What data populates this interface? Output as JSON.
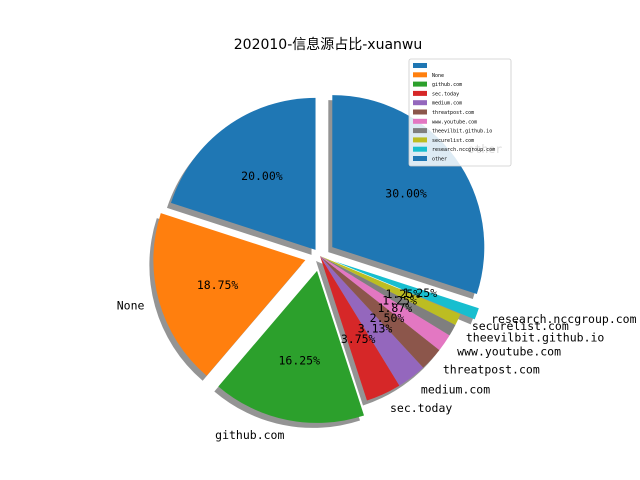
{
  "chart_data": {
    "type": "pie",
    "title": "202010-信息源占比-xuanwu",
    "slices": [
      {
        "label": "",
        "value": 20.0,
        "pct_label": "20.00%",
        "color": "#1f77b4"
      },
      {
        "label": "None",
        "value": 18.75,
        "pct_label": "18.75%",
        "color": "#ff7f0e"
      },
      {
        "label": "github.com",
        "value": 16.25,
        "pct_label": "16.25%",
        "color": "#2ca02c"
      },
      {
        "label": "sec.today",
        "value": 3.75,
        "pct_label": "3.75%",
        "color": "#d62728"
      },
      {
        "label": "medium.com",
        "value": 3.13,
        "pct_label": "3.13%",
        "color": "#9467bd"
      },
      {
        "label": "threatpost.com",
        "value": 2.5,
        "pct_label": "2.50%",
        "color": "#8c564b"
      },
      {
        "label": "www.youtube.com",
        "value": 1.87,
        "pct_label": "1.87%",
        "color": "#e377c2"
      },
      {
        "label": "theevilbit.github.io",
        "value": 1.25,
        "pct_label": "1.25%",
        "color": "#7f7f7f"
      },
      {
        "label": "securelist.com",
        "value": 1.25,
        "pct_label": "1.25%",
        "color": "#bcbd22"
      },
      {
        "label": "research.nccgroup.com",
        "value": 1.25,
        "pct_label": "1.25%",
        "color": "#17becf"
      },
      {
        "label": "other",
        "value": 30.0,
        "pct_label": "30.00%",
        "color": "#1f77b4"
      }
    ],
    "legend": {
      "placement": "top-right",
      "entries": [
        {
          "label": "",
          "color": "#1f77b4"
        },
        {
          "label": "None",
          "color": "#ff7f0e"
        },
        {
          "label": "github.com",
          "color": "#2ca02c"
        },
        {
          "label": "sec.today",
          "color": "#d62728"
        },
        {
          "label": "medium.com",
          "color": "#9467bd"
        },
        {
          "label": "threatpost.com",
          "color": "#8c564b"
        },
        {
          "label": "www.youtube.com",
          "color": "#e377c2"
        },
        {
          "label": "theevilbit.github.io",
          "color": "#7f7f7f"
        },
        {
          "label": "securelist.com",
          "color": "#bcbd22"
        },
        {
          "label": "research.nccgroup.com",
          "color": "#17becf"
        },
        {
          "label": "other",
          "color": "#1f77b4"
        }
      ]
    },
    "shadow": true,
    "exploded": true
  }
}
